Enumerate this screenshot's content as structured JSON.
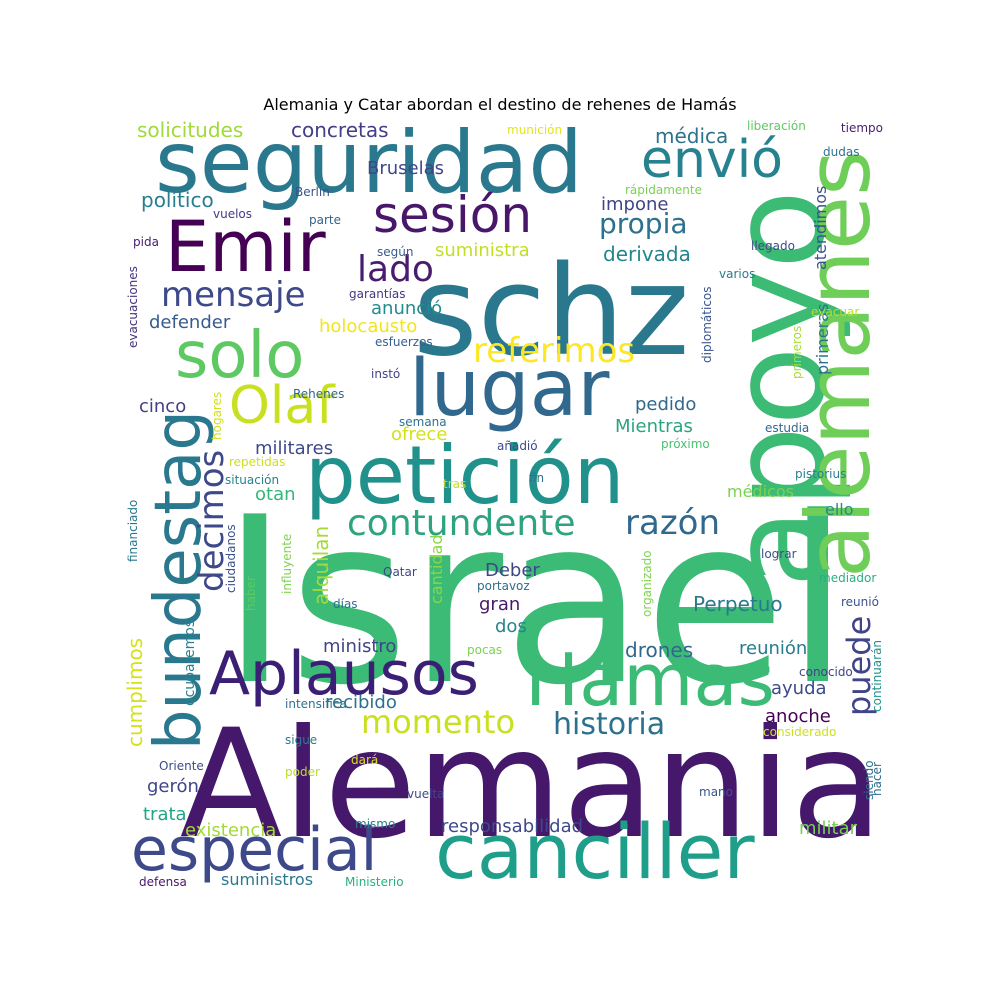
{
  "title": "Alemania y Catar abordan el destino de rehenes de Hamás",
  "words": [
    {
      "text": "Israel",
      "color": "#3bbb75"
    },
    {
      "text": "Alemania",
      "color": "#46186b"
    },
    {
      "text": "apoyo",
      "color": "#3cbb75"
    },
    {
      "text": "schz",
      "color": "#2a788e"
    },
    {
      "text": "alemanes",
      "color": "#6ece58"
    },
    {
      "text": "seguridad",
      "color": "#2a788e"
    },
    {
      "text": "canciller",
      "color": "#1f9e89"
    },
    {
      "text": "petición",
      "color": "#21918c"
    },
    {
      "text": "Hamas",
      "color": "#3bbb75"
    },
    {
      "text": "lugar",
      "color": "#31688e"
    },
    {
      "text": "bundestag",
      "color": "#2a788e"
    },
    {
      "text": "especial",
      "color": "#3e4989"
    },
    {
      "text": "Aplausos",
      "color": "#3b1f75"
    },
    {
      "text": "solo",
      "color": "#5ec962"
    },
    {
      "text": "Emir",
      "color": "#440154"
    },
    {
      "text": "envió",
      "color": "#26828e"
    },
    {
      "text": "sesión",
      "color": "#481769"
    },
    {
      "text": "Olaf",
      "color": "#c8e020"
    },
    {
      "text": "contundente",
      "color": "#2ea37f"
    },
    {
      "text": "momento",
      "color": "#c8e020"
    },
    {
      "text": "decimos",
      "color": "#3e4989"
    },
    {
      "text": "razón",
      "color": "#31688e"
    },
    {
      "text": "mensaje",
      "color": "#3e4989"
    },
    {
      "text": "referimos",
      "color": "#fde725"
    },
    {
      "text": "lado",
      "color": "#481c6e"
    },
    {
      "text": "historia",
      "color": "#2c728e"
    },
    {
      "text": "propia",
      "color": "#2c728e"
    },
    {
      "text": "puede",
      "color": "#414487"
    },
    {
      "text": "alquilan",
      "color": "#a5db36"
    },
    {
      "text": "cumplimos",
      "color": "#d5e21a"
    },
    {
      "text": "solicitudes",
      "color": "#a0da39"
    },
    {
      "text": "concretas",
      "color": "#433e85"
    },
    {
      "text": "médica",
      "color": "#2c728e"
    },
    {
      "text": "Bruselas",
      "color": "#404688"
    },
    {
      "text": "político",
      "color": "#277f8e"
    },
    {
      "text": "impone",
      "color": "#414487"
    },
    {
      "text": "suministra",
      "color": "#c0df25"
    },
    {
      "text": "derivada",
      "color": "#25858e"
    },
    {
      "text": "anunció",
      "color": "#228b8d"
    },
    {
      "text": "holocausto",
      "color": "#f1e51d"
    },
    {
      "text": "defender",
      "color": "#365c8d"
    },
    {
      "text": "pedido",
      "color": "#31688e"
    },
    {
      "text": "Mientras",
      "color": "#2ca37f"
    },
    {
      "text": "cinco",
      "color": "#433e85"
    },
    {
      "text": "militares",
      "color": "#3e4989"
    },
    {
      "text": "ofrece",
      "color": "#d2e21b"
    },
    {
      "text": "otan",
      "color": "#35b779"
    },
    {
      "text": "Deber",
      "color": "#3f4788"
    },
    {
      "text": "gran",
      "color": "#48186a"
    },
    {
      "text": "dos",
      "color": "#25848e"
    },
    {
      "text": "Perpetuo",
      "color": "#2a788e"
    },
    {
      "text": "cantidad",
      "color": "#8bd646"
    },
    {
      "text": "ministro",
      "color": "#414487"
    },
    {
      "text": "drones",
      "color": "#31688e"
    },
    {
      "text": "reunión",
      "color": "#287c8e"
    },
    {
      "text": "ayuda",
      "color": "#3e4989"
    },
    {
      "text": "recibido",
      "color": "#2c728e"
    },
    {
      "text": "anoche",
      "color": "#440154"
    },
    {
      "text": "gerón",
      "color": "#404688"
    },
    {
      "text": "trata",
      "color": "#21a585"
    },
    {
      "text": "existencia",
      "color": "#a2da37"
    },
    {
      "text": "responsabilidad",
      "color": "#3e4989"
    },
    {
      "text": "militar",
      "color": "#75d054"
    },
    {
      "text": "suministros",
      "color": "#2a788e"
    },
    {
      "text": "primeras",
      "color": "#2c728e"
    },
    {
      "text": "atendimos",
      "color": "#3b528b"
    },
    {
      "text": "médicos",
      "color": "#7ad151"
    },
    {
      "text": "ello",
      "color": "#238a8d"
    },
    {
      "text": "ocuparemos",
      "color": "#27808e"
    },
    {
      "text": "munición",
      "color": "#e5e419"
    },
    {
      "text": "liberación",
      "color": "#5ec962"
    },
    {
      "text": "tiempo",
      "color": "#482071"
    },
    {
      "text": "dudas",
      "color": "#2c728e"
    },
    {
      "text": "rápidamente",
      "color": "#7ad151"
    },
    {
      "text": "Berlín",
      "color": "#3b528b"
    },
    {
      "text": "vuelos",
      "color": "#443b84"
    },
    {
      "text": "parte",
      "color": "#33638d"
    },
    {
      "text": "llegado",
      "color": "#3e4989"
    },
    {
      "text": "pida",
      "color": "#481a6c"
    },
    {
      "text": "según",
      "color": "#365d8d"
    },
    {
      "text": "varios",
      "color": "#287d8e"
    },
    {
      "text": "garantías",
      "color": "#453781"
    },
    {
      "text": "evacuaciones",
      "color": "#46327e"
    },
    {
      "text": "diplomáticos",
      "color": "#3a548c"
    },
    {
      "text": "evacuar",
      "color": "#b8de29"
    },
    {
      "text": "esfuerzos",
      "color": "#355f8d"
    },
    {
      "text": "instó",
      "color": "#404387"
    },
    {
      "text": "primeros",
      "color": "#a8db34"
    },
    {
      "text": "Rehenes",
      "color": "#31688e"
    },
    {
      "text": "hogares",
      "color": "#d0e11c"
    },
    {
      "text": "semana",
      "color": "#2c728e"
    },
    {
      "text": "añadió",
      "color": "#3e4989"
    },
    {
      "text": "estudia",
      "color": "#32658e"
    },
    {
      "text": "próximo",
      "color": "#48c16e"
    },
    {
      "text": "repetidas",
      "color": "#cde11d"
    },
    {
      "text": "situación",
      "color": "#26828e"
    },
    {
      "text": "tras",
      "color": "#bddf26"
    },
    {
      "text": "fin",
      "color": "#2e6e8e"
    },
    {
      "text": "pistorius",
      "color": "#277f8e"
    },
    {
      "text": "financiado",
      "color": "#2a788e"
    },
    {
      "text": "ciudadanos",
      "color": "#3a538b"
    },
    {
      "text": "influyente",
      "color": "#7fd34e"
    },
    {
      "text": "organizado",
      "color": "#7fd34e"
    },
    {
      "text": "lograr",
      "color": "#3b528b"
    },
    {
      "text": "Qatar",
      "color": "#3e4989"
    },
    {
      "text": "portavoz",
      "color": "#2f6c8e"
    },
    {
      "text": "haber",
      "color": "#5ec962"
    },
    {
      "text": "días",
      "color": "#2c728e"
    },
    {
      "text": "mediador",
      "color": "#2ab07f"
    },
    {
      "text": "reunió",
      "color": "#3b528b"
    },
    {
      "text": "pocas",
      "color": "#7ad151"
    },
    {
      "text": "conocido",
      "color": "#404387"
    },
    {
      "text": "continuarán",
      "color": "#21918c"
    },
    {
      "text": "intensifica",
      "color": "#2c728e"
    },
    {
      "text": "sigue",
      "color": "#287c8e"
    },
    {
      "text": "considerado",
      "color": "#cde11d"
    },
    {
      "text": "Oriente",
      "color": "#3e4989"
    },
    {
      "text": "poder",
      "color": "#b8de29"
    },
    {
      "text": "dará",
      "color": "#d8e219"
    },
    {
      "text": "hacer",
      "color": "#2e6e8e"
    },
    {
      "text": "siendo",
      "color": "#2c728e"
    },
    {
      "text": "vuelta",
      "color": "#3e4989"
    },
    {
      "text": "mano",
      "color": "#3a548c"
    },
    {
      "text": "mismo",
      "color": "#277f8e"
    },
    {
      "text": "defensa",
      "color": "#48186a"
    },
    {
      "text": "Ministerio",
      "color": "#2ab07f"
    }
  ]
}
